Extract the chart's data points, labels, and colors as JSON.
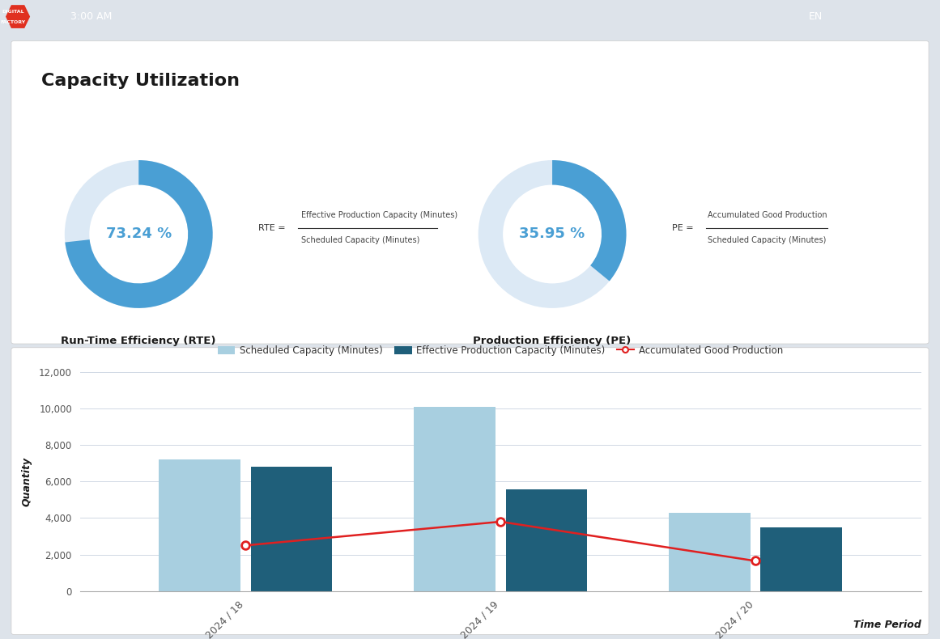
{
  "title": "Capacity Utilization",
  "navbar_color": "#3a3a3a",
  "panel_bg": "#ffffff",
  "outer_bg": "#dde3ea",
  "rte_value": 73.24,
  "rte_label": "Run-Time Efficiency (RTE)",
  "rte_color": "#4a9fd4",
  "rte_bg": "#dce9f5",
  "rte_formula_lhs": "RTE =",
  "rte_formula_num": "Effective Production Capacity (Minutes)",
  "rte_formula_den": "Scheduled Capacity (Minutes)",
  "pe_value": 35.95,
  "pe_label": "Production Efficiency (PE)",
  "pe_color": "#4a9fd4",
  "pe_bg": "#dce9f5",
  "pe_formula_lhs": "PE =",
  "pe_formula_num": "Accumulated Good Production",
  "pe_formula_den": "Scheduled Capacity (Minutes)",
  "categories": [
    "2024 / 18",
    "2024 / 19",
    "2024 / 20"
  ],
  "scheduled_capacity": [
    7200,
    10100,
    4300
  ],
  "effective_production": [
    6800,
    5550,
    3500
  ],
  "accumulated_good": [
    2500,
    3800,
    1650
  ],
  "bar_color_scheduled": "#a8cfe0",
  "bar_color_effective": "#1f5f7a",
  "line_color_accumulated": "#e02020",
  "ylabel": "Quantity",
  "xlabel": "Time Period",
  "ylim": [
    0,
    12000
  ],
  "yticks": [
    0,
    2000,
    4000,
    6000,
    8000,
    10000,
    12000
  ],
  "legend_labels": [
    "Scheduled Capacity (Minutes)",
    "Effective Production Capacity (Minutes)",
    "Accumulated Good Production"
  ],
  "chart_bg": "#ffffff",
  "grid_color": "#d0d8e4"
}
